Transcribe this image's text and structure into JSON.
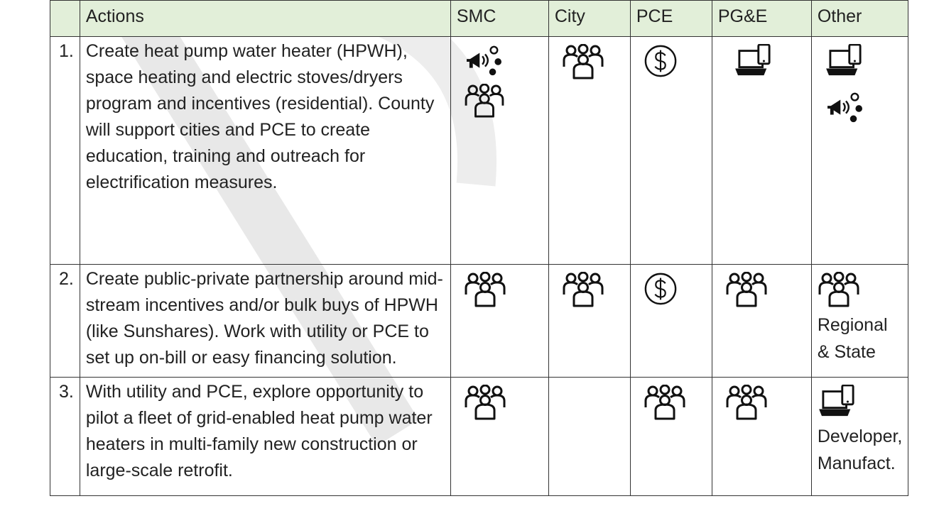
{
  "table": {
    "header": [
      "Actions",
      "SMC",
      "City",
      "PCE",
      "PG&E",
      "Other"
    ],
    "rows": [
      {
        "number": "1.",
        "action": "Create heat pump water heater (HPWH), space heating and electric stoves/dryers program and incentives (residential). County will support cities and PCE to create education, training and outreach for electrification measures."
      },
      {
        "number": "2.",
        "action": "Create public-private partnership around mid-stream incentives and/or bulk buys of HPWH (like Sunshares). Work with utility or PCE to set up on-bill or easy financing solution.",
        "other_note": "Regional & State"
      },
      {
        "number": "3.",
        "action": "With utility and PCE, explore opportunity to pilot a fleet of grid-enabled heat pump water heaters in multi-family new construction or large-scale retrofit.",
        "other_note": "Developer, Manufact."
      }
    ]
  }
}
